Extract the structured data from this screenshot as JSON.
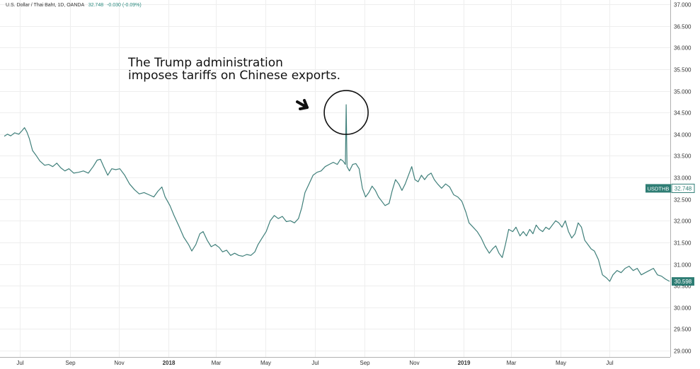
{
  "header": {
    "symbol_title": "U.S. Dollar / Thai Baht, 1D, OANDA",
    "last_price": "32.748",
    "change": "-0.030 (-0.09%)"
  },
  "annotation": {
    "line1": "The Trump administration",
    "line2": "imposes tariffs on Chinese exports."
  },
  "colors": {
    "line": "#3f7f7a",
    "badge": "#2e7d74",
    "grid": "#eeeeee",
    "axis_text": "#333333"
  },
  "icons": [
    "arrow-icon",
    "highlight-circle"
  ],
  "chart_data": {
    "type": "line",
    "title": "",
    "xlabel": "",
    "ylabel": "",
    "ylim": [
      28.8,
      37.05
    ],
    "xlim": [
      "2017-06-12",
      "2019-09-13"
    ],
    "y_ticks": [
      "37.000",
      "36.500",
      "36.000",
      "35.500",
      "35.000",
      "34.500",
      "34.000",
      "33.500",
      "33.000",
      "32.500",
      "32.000",
      "31.500",
      "31.000",
      "30.500",
      "30.000",
      "29.500",
      "29.000"
    ],
    "x_ticks": [
      {
        "date": "2017-07-01",
        "label": "Jul",
        "bold": false
      },
      {
        "date": "2017-09-01",
        "label": "Sep",
        "bold": false
      },
      {
        "date": "2017-11-01",
        "label": "Nov",
        "bold": false
      },
      {
        "date": "2018-01-01",
        "label": "2018",
        "bold": true
      },
      {
        "date": "2018-03-01",
        "label": "Mar",
        "bold": false
      },
      {
        "date": "2018-05-01",
        "label": "May",
        "bold": false
      },
      {
        "date": "2018-07-01",
        "label": "Jul",
        "bold": false
      },
      {
        "date": "2018-09-01",
        "label": "Sep",
        "bold": false
      },
      {
        "date": "2018-11-01",
        "label": "Nov",
        "bold": false
      },
      {
        "date": "2019-01-01",
        "label": "2019",
        "bold": true
      },
      {
        "date": "2019-03-01",
        "label": "Mar",
        "bold": false
      },
      {
        "date": "2019-05-01",
        "label": "May",
        "bold": false
      },
      {
        "date": "2019-07-01",
        "label": "Jul",
        "bold": false
      }
    ],
    "series": [
      {
        "points": [
          [
            "2017-06-12",
            33.95
          ],
          [
            "2017-06-16",
            34.0
          ],
          [
            "2017-06-20",
            33.96
          ],
          [
            "2017-06-25",
            34.03
          ],
          [
            "2017-06-30",
            34.0
          ],
          [
            "2017-07-04",
            34.08
          ],
          [
            "2017-07-07",
            34.15
          ],
          [
            "2017-07-10",
            34.05
          ],
          [
            "2017-07-13",
            33.9
          ],
          [
            "2017-07-17",
            33.62
          ],
          [
            "2017-07-21",
            33.52
          ],
          [
            "2017-07-26",
            33.38
          ],
          [
            "2017-08-01",
            33.28
          ],
          [
            "2017-08-06",
            33.3
          ],
          [
            "2017-08-11",
            33.25
          ],
          [
            "2017-08-16",
            33.33
          ],
          [
            "2017-08-21",
            33.22
          ],
          [
            "2017-08-26",
            33.15
          ],
          [
            "2017-08-31",
            33.2
          ],
          [
            "2017-09-06",
            33.1
          ],
          [
            "2017-09-12",
            33.12
          ],
          [
            "2017-09-18",
            33.15
          ],
          [
            "2017-09-24",
            33.1
          ],
          [
            "2017-09-30",
            33.25
          ],
          [
            "2017-10-05",
            33.4
          ],
          [
            "2017-10-09",
            33.42
          ],
          [
            "2017-10-13",
            33.25
          ],
          [
            "2017-10-18",
            33.05
          ],
          [
            "2017-10-23",
            33.2
          ],
          [
            "2017-10-28",
            33.18
          ],
          [
            "2017-11-02",
            33.2
          ],
          [
            "2017-11-08",
            33.05
          ],
          [
            "2017-11-14",
            32.85
          ],
          [
            "2017-11-20",
            32.72
          ],
          [
            "2017-11-26",
            32.62
          ],
          [
            "2017-12-02",
            32.65
          ],
          [
            "2017-12-08",
            32.6
          ],
          [
            "2017-12-14",
            32.55
          ],
          [
            "2017-12-19",
            32.68
          ],
          [
            "2017-12-24",
            32.78
          ],
          [
            "2017-12-28",
            32.55
          ],
          [
            "2018-01-03",
            32.35
          ],
          [
            "2018-01-08",
            32.12
          ],
          [
            "2018-01-14",
            31.88
          ],
          [
            "2018-01-20",
            31.62
          ],
          [
            "2018-01-26",
            31.45
          ],
          [
            "2018-01-30",
            31.3
          ],
          [
            "2018-02-04",
            31.45
          ],
          [
            "2018-02-09",
            31.7
          ],
          [
            "2018-02-13",
            31.75
          ],
          [
            "2018-02-18",
            31.55
          ],
          [
            "2018-02-23",
            31.4
          ],
          [
            "2018-02-28",
            31.45
          ],
          [
            "2018-03-05",
            31.38
          ],
          [
            "2018-03-09",
            31.28
          ],
          [
            "2018-03-14",
            31.32
          ],
          [
            "2018-03-19",
            31.2
          ],
          [
            "2018-03-24",
            31.25
          ],
          [
            "2018-03-29",
            31.2
          ],
          [
            "2018-04-03",
            31.18
          ],
          [
            "2018-04-08",
            31.22
          ],
          [
            "2018-04-13",
            31.2
          ],
          [
            "2018-04-18",
            31.28
          ],
          [
            "2018-04-22",
            31.45
          ],
          [
            "2018-04-27",
            31.6
          ],
          [
            "2018-05-02",
            31.75
          ],
          [
            "2018-05-07",
            32.0
          ],
          [
            "2018-05-12",
            32.12
          ],
          [
            "2018-05-17",
            32.05
          ],
          [
            "2018-05-22",
            32.1
          ],
          [
            "2018-05-27",
            31.98
          ],
          [
            "2018-06-01",
            32.0
          ],
          [
            "2018-06-06",
            31.95
          ],
          [
            "2018-06-11",
            32.05
          ],
          [
            "2018-06-15",
            32.3
          ],
          [
            "2018-06-19",
            32.65
          ],
          [
            "2018-06-24",
            32.85
          ],
          [
            "2018-06-29",
            33.05
          ],
          [
            "2018-07-04",
            33.12
          ],
          [
            "2018-07-09",
            33.15
          ],
          [
            "2018-07-14",
            33.25
          ],
          [
            "2018-07-19",
            33.3
          ],
          [
            "2018-07-24",
            33.35
          ],
          [
            "2018-07-29",
            33.3
          ],
          [
            "2018-08-02",
            33.42
          ],
          [
            "2018-08-05",
            33.38
          ],
          [
            "2018-08-08",
            33.3
          ],
          [
            "2018-08-09",
            34.68
          ],
          [
            "2018-08-10",
            33.25
          ],
          [
            "2018-08-13",
            33.15
          ],
          [
            "2018-08-17",
            33.3
          ],
          [
            "2018-08-21",
            33.32
          ],
          [
            "2018-08-25",
            33.2
          ],
          [
            "2018-08-29",
            32.75
          ],
          [
            "2018-09-02",
            32.55
          ],
          [
            "2018-09-06",
            32.65
          ],
          [
            "2018-09-10",
            32.8
          ],
          [
            "2018-09-14",
            32.7
          ],
          [
            "2018-09-18",
            32.55
          ],
          [
            "2018-09-22",
            32.45
          ],
          [
            "2018-09-26",
            32.35
          ],
          [
            "2018-10-01",
            32.4
          ],
          [
            "2018-10-05",
            32.7
          ],
          [
            "2018-10-09",
            32.95
          ],
          [
            "2018-10-13",
            32.85
          ],
          [
            "2018-10-17",
            32.7
          ],
          [
            "2018-10-21",
            32.85
          ],
          [
            "2018-10-25",
            33.05
          ],
          [
            "2018-10-29",
            33.25
          ],
          [
            "2018-11-02",
            32.95
          ],
          [
            "2018-11-06",
            32.9
          ],
          [
            "2018-11-10",
            33.05
          ],
          [
            "2018-11-14",
            32.95
          ],
          [
            "2018-11-18",
            33.05
          ],
          [
            "2018-11-22",
            33.1
          ],
          [
            "2018-11-26",
            32.95
          ],
          [
            "2018-11-30",
            32.85
          ],
          [
            "2018-12-05",
            32.75
          ],
          [
            "2018-12-10",
            32.85
          ],
          [
            "2018-12-15",
            32.78
          ],
          [
            "2018-12-20",
            32.6
          ],
          [
            "2018-12-25",
            32.55
          ],
          [
            "2018-12-30",
            32.45
          ],
          [
            "2019-01-04",
            32.2
          ],
          [
            "2019-01-08",
            31.95
          ],
          [
            "2019-01-13",
            31.85
          ],
          [
            "2019-01-18",
            31.75
          ],
          [
            "2019-01-23",
            31.6
          ],
          [
            "2019-01-28",
            31.4
          ],
          [
            "2019-02-02",
            31.25
          ],
          [
            "2019-02-06",
            31.35
          ],
          [
            "2019-02-10",
            31.42
          ],
          [
            "2019-02-14",
            31.25
          ],
          [
            "2019-02-18",
            31.15
          ],
          [
            "2019-02-22",
            31.45
          ],
          [
            "2019-02-26",
            31.8
          ],
          [
            "2019-03-03",
            31.75
          ],
          [
            "2019-03-07",
            31.85
          ],
          [
            "2019-03-12",
            31.65
          ],
          [
            "2019-03-16",
            31.75
          ],
          [
            "2019-03-20",
            31.65
          ],
          [
            "2019-03-24",
            31.8
          ],
          [
            "2019-03-28",
            31.7
          ],
          [
            "2019-04-01",
            31.9
          ],
          [
            "2019-04-05",
            31.8
          ],
          [
            "2019-04-09",
            31.75
          ],
          [
            "2019-04-13",
            31.85
          ],
          [
            "2019-04-17",
            31.8
          ],
          [
            "2019-04-21",
            31.9
          ],
          [
            "2019-04-25",
            32.0
          ],
          [
            "2019-04-29",
            31.95
          ],
          [
            "2019-05-03",
            31.85
          ],
          [
            "2019-05-07",
            32.0
          ],
          [
            "2019-05-11",
            31.75
          ],
          [
            "2019-05-15",
            31.6
          ],
          [
            "2019-05-19",
            31.7
          ],
          [
            "2019-05-23",
            31.95
          ],
          [
            "2019-05-27",
            31.85
          ],
          [
            "2019-05-31",
            31.55
          ],
          [
            "2019-06-04",
            31.45
          ],
          [
            "2019-06-08",
            31.35
          ],
          [
            "2019-06-12",
            31.3
          ],
          [
            "2019-06-17",
            31.1
          ],
          [
            "2019-06-22",
            30.75
          ],
          [
            "2019-06-27",
            30.68
          ],
          [
            "2019-07-01",
            30.6
          ],
          [
            "2019-07-05",
            30.75
          ],
          [
            "2019-07-10",
            30.85
          ],
          [
            "2019-07-15",
            30.8
          ],
          [
            "2019-07-20",
            30.9
          ],
          [
            "2019-07-25",
            30.95
          ],
          [
            "2019-07-30",
            30.85
          ],
          [
            "2019-08-04",
            30.9
          ],
          [
            "2019-08-09",
            30.75
          ],
          [
            "2019-08-14",
            30.8
          ],
          [
            "2019-08-19",
            30.85
          ],
          [
            "2019-08-24",
            30.9
          ],
          [
            "2019-08-29",
            30.75
          ],
          [
            "2019-09-03",
            30.72
          ],
          [
            "2019-09-08",
            30.65
          ],
          [
            "2019-09-13",
            30.6
          ]
        ]
      }
    ],
    "markers": [
      {
        "label": "USDTHB",
        "value": 32.748,
        "display": "32.748",
        "style": "outline"
      },
      {
        "label": "",
        "value": 30.598,
        "display": "30.598",
        "style": "filled"
      }
    ],
    "grid": true,
    "legend": "top-left",
    "highlight": {
      "date": "2018-08-09",
      "value": 34.5
    }
  }
}
